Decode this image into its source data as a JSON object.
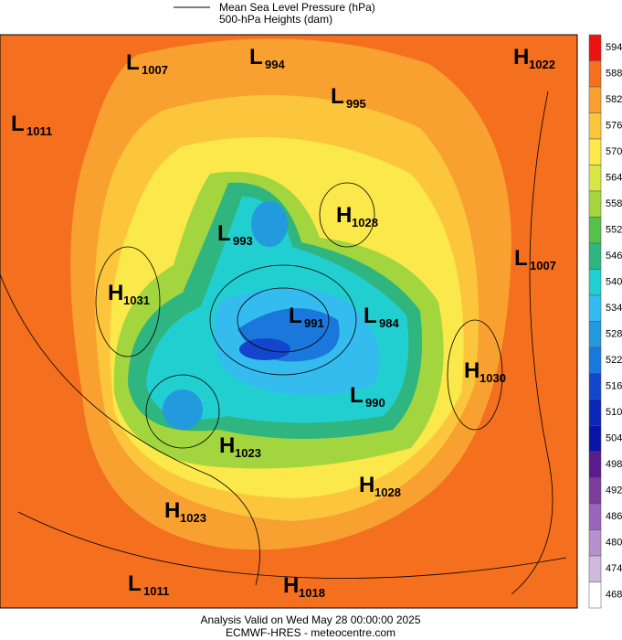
{
  "legend": {
    "pressure": "Mean Sea Level Pressure (hPa)",
    "heights": "500-hPa Heights (dam)"
  },
  "colorbar": [
    {
      "value": 594,
      "color": "#ee1111"
    },
    {
      "value": 588,
      "color": "#f46f1e"
    },
    {
      "value": 582,
      "color": "#f8a030"
    },
    {
      "value": 576,
      "color": "#fcc63c"
    },
    {
      "value": 570,
      "color": "#fbe84a"
    },
    {
      "value": 564,
      "color": "#d6e646"
    },
    {
      "value": 558,
      "color": "#a3d63e"
    },
    {
      "value": 552,
      "color": "#55c04c"
    },
    {
      "value": 546,
      "color": "#2fb57f"
    },
    {
      "value": 540,
      "color": "#22cfd0"
    },
    {
      "value": 534,
      "color": "#35bcef"
    },
    {
      "value": 528,
      "color": "#2399de"
    },
    {
      "value": 522,
      "color": "#1a77dc"
    },
    {
      "value": 516,
      "color": "#1346cc"
    },
    {
      "value": 510,
      "color": "#0a26bb"
    },
    {
      "value": 504,
      "color": "#0814a6"
    },
    {
      "value": 498,
      "color": "#5b1b8a"
    },
    {
      "value": 492,
      "color": "#7b3c9b"
    },
    {
      "value": 486,
      "color": "#9966bb"
    },
    {
      "value": 480,
      "color": "#b491cd"
    },
    {
      "value": 474,
      "color": "#cfbadf"
    },
    {
      "value": 468,
      "color": "#ffffff"
    }
  ],
  "centers": [
    {
      "letter": "L",
      "value": 1007
    },
    {
      "letter": "L",
      "value": 994
    },
    {
      "letter": "H",
      "value": 1022
    },
    {
      "letter": "L",
      "value": 995
    },
    {
      "letter": "L",
      "value": 1011
    },
    {
      "letter": "H",
      "value": 1028
    },
    {
      "letter": "L",
      "value": 993
    },
    {
      "letter": "L",
      "value": 1007
    },
    {
      "letter": "H",
      "value": 1031
    },
    {
      "letter": "L",
      "value": 991
    },
    {
      "letter": "L",
      "value": 984
    },
    {
      "letter": "H",
      "value": 1030
    },
    {
      "letter": "L",
      "value": 990
    },
    {
      "letter": "H",
      "value": 1023
    },
    {
      "letter": "H",
      "value": 1028
    },
    {
      "letter": "H",
      "value": 1023
    },
    {
      "letter": "L",
      "value": 1011
    },
    {
      "letter": "H",
      "value": 1018
    }
  ],
  "footer": {
    "line1": "Analysis Valid on Wed May 28 00:00:00 2025",
    "line2": "ECMWF-HRES - meteocentre.com"
  }
}
